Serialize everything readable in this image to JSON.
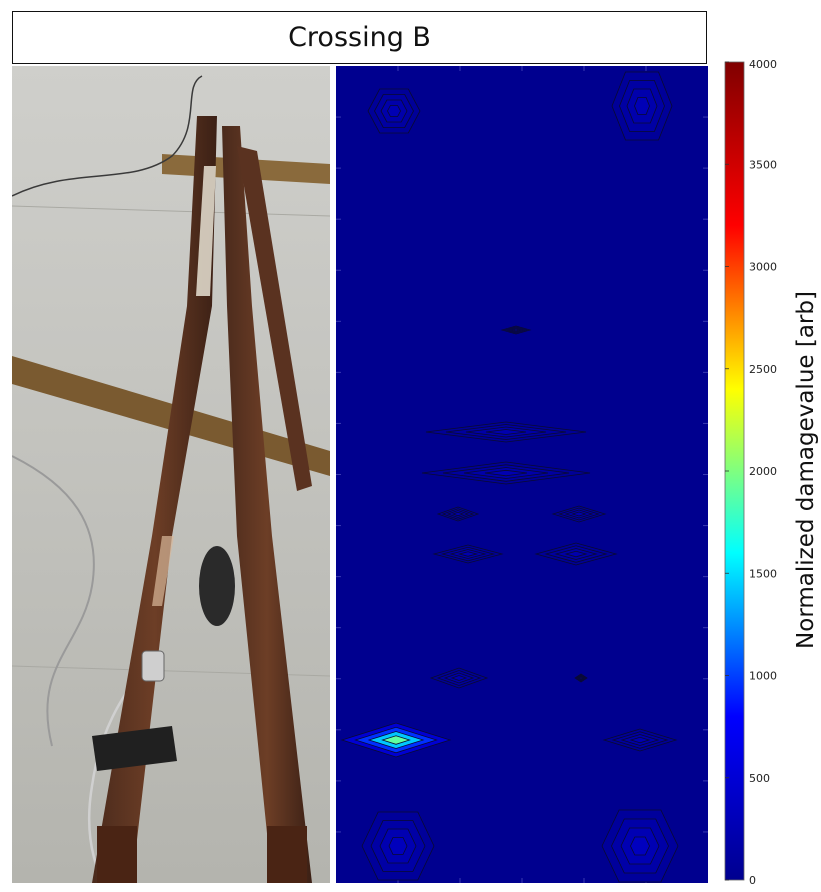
{
  "title": "Crossing B",
  "chart_data": {
    "type": "heatmap",
    "title": "Crossing B",
    "colorbar": {
      "label": "Normalized damagevalue [arb]",
      "range": [
        0,
        4000
      ],
      "ticks": [
        0,
        500,
        1000,
        1500,
        2000,
        2500,
        3000,
        3500,
        4000
      ],
      "colormap": "jet",
      "colors": [
        "#00008f",
        "#0000ff",
        "#00ffff",
        "#ffff00",
        "#ff0000",
        "#800000"
      ]
    },
    "background_value": 0,
    "background_color": "#00008f",
    "hotspots": [
      {
        "value": 260
      },
      {
        "value": 280
      },
      {
        "value": 120
      },
      {
        "value": 220
      },
      {
        "value": 240
      },
      {
        "value": 200
      },
      {
        "value": 200
      },
      {
        "value": 220
      },
      {
        "value": 200
      },
      {
        "value": 200
      },
      {
        "value": 200
      },
      {
        "value": 1900
      },
      {
        "value": 230
      },
      {
        "value": 320
      },
      {
        "value": 340
      }
    ]
  },
  "photo": {
    "description_icon": "railway-crossing-photo"
  }
}
